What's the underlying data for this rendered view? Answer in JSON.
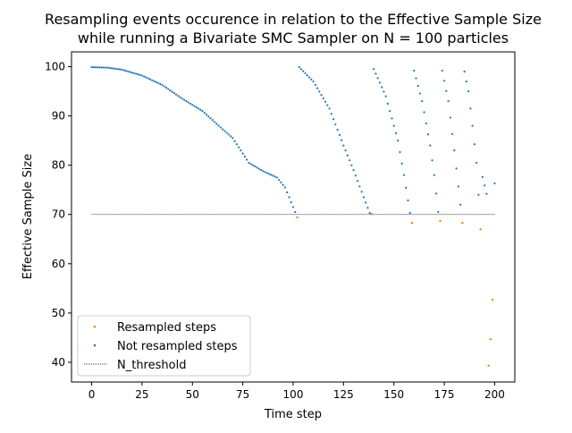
{
  "chart_data": {
    "type": "scatter",
    "title_line1": "Resampling events occurence in relation to the Effective Sample Size",
    "title_line2": "while running a Bivariate SMC Sampler on N = 100 particles",
    "xlabel": "Time step",
    "ylabel": "Effective Sample Size",
    "xlim": [
      -10,
      210
    ],
    "ylim": [
      36,
      103
    ],
    "x_ticks": [
      0,
      25,
      50,
      75,
      100,
      125,
      150,
      175,
      200
    ],
    "y_ticks": [
      40,
      50,
      60,
      70,
      80,
      90,
      100
    ],
    "legend_position": "lower-left",
    "threshold": {
      "name": "N_threshold",
      "value": 70,
      "x_start": 0,
      "x_end": 200,
      "color": "#000000",
      "style": "dotted"
    },
    "series": [
      {
        "name": "Resampled steps",
        "color": "#ff7f0e",
        "points": [
          [
            102,
            69.4
          ],
          [
            139,
            70.1
          ],
          [
            159,
            68.3
          ],
          [
            173,
            68.7
          ],
          [
            184,
            68.3
          ],
          [
            193,
            67.0
          ],
          [
            197,
            39.3
          ],
          [
            198,
            44.7
          ],
          [
            199,
            52.7
          ]
        ]
      },
      {
        "name": "Not resampled steps",
        "color": "#1f77b4",
        "segments": [
          {
            "x_start": 0,
            "x_end": 101,
            "knots": [
              [
                0,
                99.9
              ],
              [
                8,
                99.8
              ],
              [
                15,
                99.4
              ],
              [
                25,
                98.2
              ],
              [
                35,
                96.3
              ],
              [
                45,
                93.5
              ],
              [
                55,
                91.0
              ],
              [
                65,
                87.3
              ],
              [
                70,
                85.5
              ],
              [
                78,
                80.5
              ],
              [
                85,
                78.8
              ],
              [
                92,
                77.5
              ],
              [
                96,
                75.5
              ],
              [
                101,
                70.5
              ]
            ]
          },
          {
            "x_start": 103,
            "x_end": 138,
            "knots": [
              [
                103,
                99.9
              ],
              [
                110,
                97.0
              ],
              [
                118,
                91.5
              ],
              [
                125,
                84.0
              ],
              [
                130,
                79.0
              ],
              [
                135,
                73.5
              ],
              [
                138,
                70.3
              ]
            ]
          },
          {
            "x_start": 140,
            "x_end": 158,
            "knots": [
              [
                140,
                99.5
              ],
              [
                146,
                94.0
              ],
              [
                152,
                85.0
              ],
              [
                155,
                78.0
              ],
              [
                158,
                70.3
              ]
            ]
          },
          {
            "x_start": 160,
            "x_end": 172,
            "knots": [
              [
                160,
                99.2
              ],
              [
                164,
                93.0
              ],
              [
                168,
                84.0
              ],
              [
                170,
                78.0
              ],
              [
                172,
                70.5
              ]
            ]
          },
          {
            "x_start": 174,
            "x_end": 183,
            "knots": [
              [
                174,
                99.2
              ],
              [
                177,
                93.0
              ],
              [
                180,
                83.0
              ],
              [
                183,
                72.0
              ]
            ]
          },
          {
            "x_start": 185,
            "x_end": 192,
            "knots": [
              [
                185,
                99.0
              ],
              [
                187,
                95.0
              ],
              [
                189,
                88.0
              ],
              [
                191,
                80.5
              ],
              [
                192,
                74.0
              ]
            ]
          },
          {
            "x_start": 194,
            "x_end": 196,
            "knots": [
              [
                194,
                77.6
              ],
              [
                196,
                74.2
              ]
            ]
          },
          {
            "x_start": 200,
            "x_end": 200,
            "knots": [
              [
                200,
                76.3
              ]
            ]
          }
        ]
      }
    ]
  }
}
